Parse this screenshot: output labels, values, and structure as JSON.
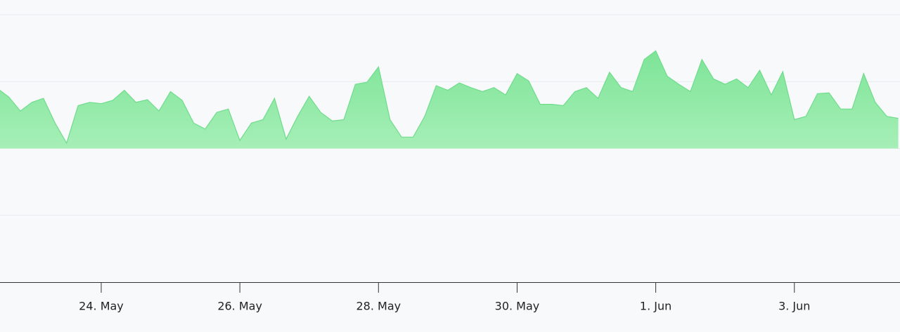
{
  "chart_data": {
    "type": "area",
    "categories": [
      null,
      null,
      null,
      null,
      null,
      null,
      null,
      null,
      null,
      "24. May",
      null,
      null,
      null,
      null,
      null,
      null,
      null,
      null,
      null,
      null,
      null,
      "26. May",
      null,
      null,
      null,
      null,
      null,
      null,
      null,
      null,
      null,
      null,
      null,
      "28. May",
      null,
      null,
      null,
      null,
      null,
      null,
      null,
      null,
      null,
      null,
      null,
      "30. May",
      null,
      null,
      null,
      null,
      null,
      null,
      null,
      null,
      null,
      null,
      null,
      "1. Jun",
      null,
      null,
      null,
      null,
      null,
      null,
      null,
      null,
      null,
      null,
      null,
      "3. Jun",
      null,
      null,
      null,
      null,
      null,
      null,
      null,
      null,
      null
    ],
    "values": [
      0.9,
      0.77,
      0.56,
      0.69,
      0.75,
      0.38,
      0.08,
      0.64,
      0.69,
      0.67,
      0.72,
      0.87,
      0.69,
      0.73,
      0.56,
      0.85,
      0.72,
      0.38,
      0.29,
      0.54,
      0.59,
      0.12,
      0.38,
      0.43,
      0.75,
      0.14,
      0.48,
      0.78,
      0.54,
      0.41,
      0.43,
      0.96,
      0.99,
      1.22,
      0.43,
      0.17,
      0.17,
      0.48,
      0.94,
      0.87,
      0.98,
      0.91,
      0.85,
      0.91,
      0.8,
      1.12,
      1.01,
      0.66,
      0.66,
      0.64,
      0.85,
      0.91,
      0.75,
      1.14,
      0.91,
      0.85,
      1.33,
      1.46,
      1.08,
      0.96,
      0.85,
      1.33,
      1.04,
      0.96,
      1.04,
      0.91,
      1.17,
      0.8,
      1.15,
      0.43,
      0.48,
      0.82,
      0.83,
      0.59,
      0.59,
      1.12,
      0.69,
      0.48,
      0.45
    ],
    "color": "#6fdc8c",
    "ylim": [
      -2,
      2
    ],
    "ygrid": [
      -1,
      0,
      1,
      2
    ]
  }
}
